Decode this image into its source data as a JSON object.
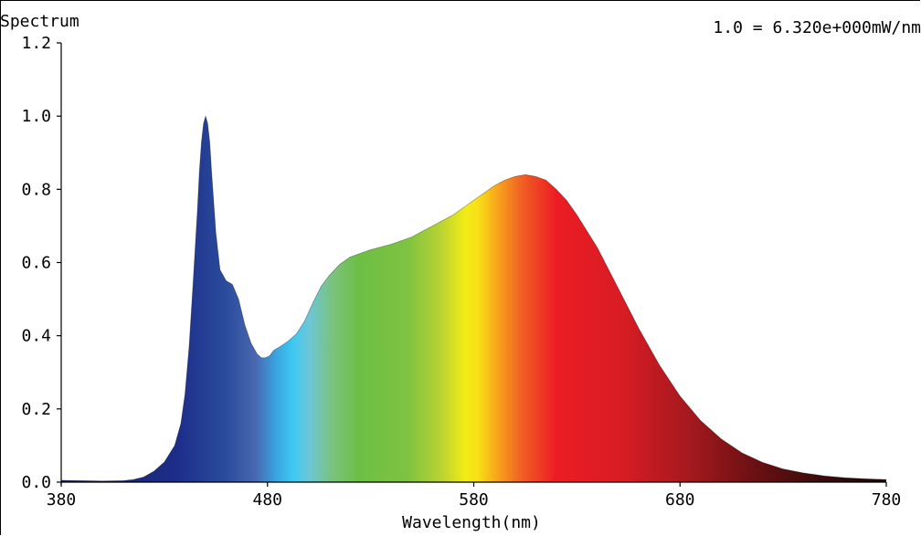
{
  "chart_data": {
    "type": "area",
    "title": "Spectrum",
    "scale_note": "1.0 = 6.320e+000mW/nm",
    "xlabel": "Wavelength(nm)",
    "ylabel": "",
    "xlim": [
      380,
      780
    ],
    "ylim": [
      0,
      1.2
    ],
    "x_ticks": [
      380,
      480,
      580,
      680,
      780
    ],
    "x_tick_labels": [
      "380",
      "480",
      "580",
      "680",
      "780"
    ],
    "y_ticks": [
      0,
      0.2,
      0.4,
      0.6,
      0.8,
      1.0,
      1.2
    ],
    "y_tick_labels": [
      "0.0",
      "0.2",
      "0.4",
      "0.6",
      "0.8",
      "1.0",
      "1.2"
    ],
    "grid": false,
    "fill": "wavelength-colored spectrum",
    "series": [
      {
        "x": [
          380,
          390,
          400,
          410,
          415,
          420,
          425,
          430,
          435,
          438,
          440,
          442,
          444,
          446,
          447,
          448,
          449,
          450,
          451,
          452,
          453,
          455,
          457,
          460,
          463,
          466,
          469,
          472,
          475,
          477,
          479,
          481,
          483,
          486,
          490,
          494,
          498,
          502,
          506,
          510,
          515,
          520,
          525,
          530,
          540,
          550,
          560,
          570,
          580,
          585,
          590,
          595,
          600,
          605,
          610,
          615,
          620,
          625,
          630,
          640,
          650,
          660,
          670,
          680,
          690,
          700,
          710,
          720,
          730,
          740,
          750,
          760,
          770,
          780
        ],
        "y": [
          0.005,
          0.004,
          0.003,
          0.004,
          0.007,
          0.014,
          0.03,
          0.055,
          0.1,
          0.16,
          0.24,
          0.37,
          0.55,
          0.74,
          0.85,
          0.93,
          0.98,
          1.0,
          0.98,
          0.93,
          0.84,
          0.68,
          0.58,
          0.55,
          0.54,
          0.5,
          0.43,
          0.38,
          0.35,
          0.34,
          0.34,
          0.345,
          0.36,
          0.37,
          0.385,
          0.405,
          0.44,
          0.49,
          0.535,
          0.565,
          0.595,
          0.615,
          0.625,
          0.635,
          0.65,
          0.67,
          0.7,
          0.73,
          0.77,
          0.79,
          0.81,
          0.825,
          0.835,
          0.84,
          0.835,
          0.825,
          0.8,
          0.77,
          0.73,
          0.64,
          0.53,
          0.42,
          0.32,
          0.235,
          0.168,
          0.118,
          0.08,
          0.054,
          0.036,
          0.025,
          0.017,
          0.012,
          0.009,
          0.007
        ]
      }
    ]
  }
}
